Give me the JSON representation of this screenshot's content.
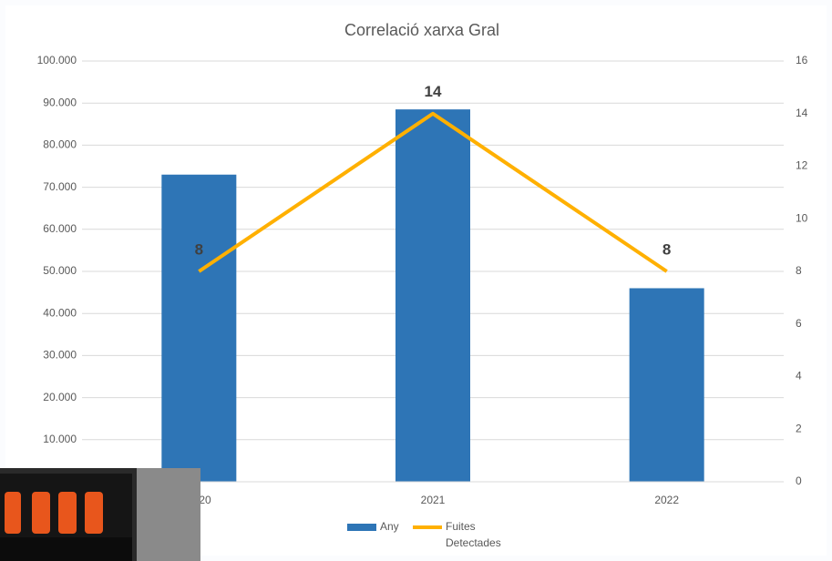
{
  "chart_data": {
    "type": "bar_line",
    "title": "Correlació xarxa Gral",
    "categories": [
      "2020",
      "2021",
      "2022"
    ],
    "series": [
      {
        "name": "Any",
        "type": "bar",
        "color": "#2e75b6",
        "values": [
          73000,
          88500,
          46000
        ]
      },
      {
        "name": "Fuites Detectades",
        "type": "line",
        "axis": "y2",
        "color": "#ffb000",
        "values": [
          8,
          14,
          8
        ],
        "value_labels": [
          "8",
          "14",
          "8"
        ]
      }
    ],
    "ylim": [
      0,
      100000
    ],
    "yticks": [
      0,
      {
        "value": 10000,
        "label": "10.000"
      },
      {
        "value": 20000,
        "label": "20.000"
      },
      {
        "value": 30000,
        "label": "30.000"
      },
      {
        "value": 40000,
        "label": "40.000"
      },
      {
        "value": 50000,
        "label": "50.000"
      },
      {
        "value": 60000,
        "label": "60.000"
      },
      {
        "value": 70000,
        "label": "70.000"
      },
      {
        "value": 80000,
        "label": "80.000"
      },
      {
        "value": 90000,
        "label": "90.000"
      },
      {
        "value": 100000,
        "label": "100.000"
      }
    ],
    "y2lim": [
      0,
      16
    ],
    "y2ticks": [
      0,
      2,
      4,
      6,
      8,
      10,
      12,
      14,
      16
    ],
    "grid": true,
    "legend": "bottom"
  }
}
